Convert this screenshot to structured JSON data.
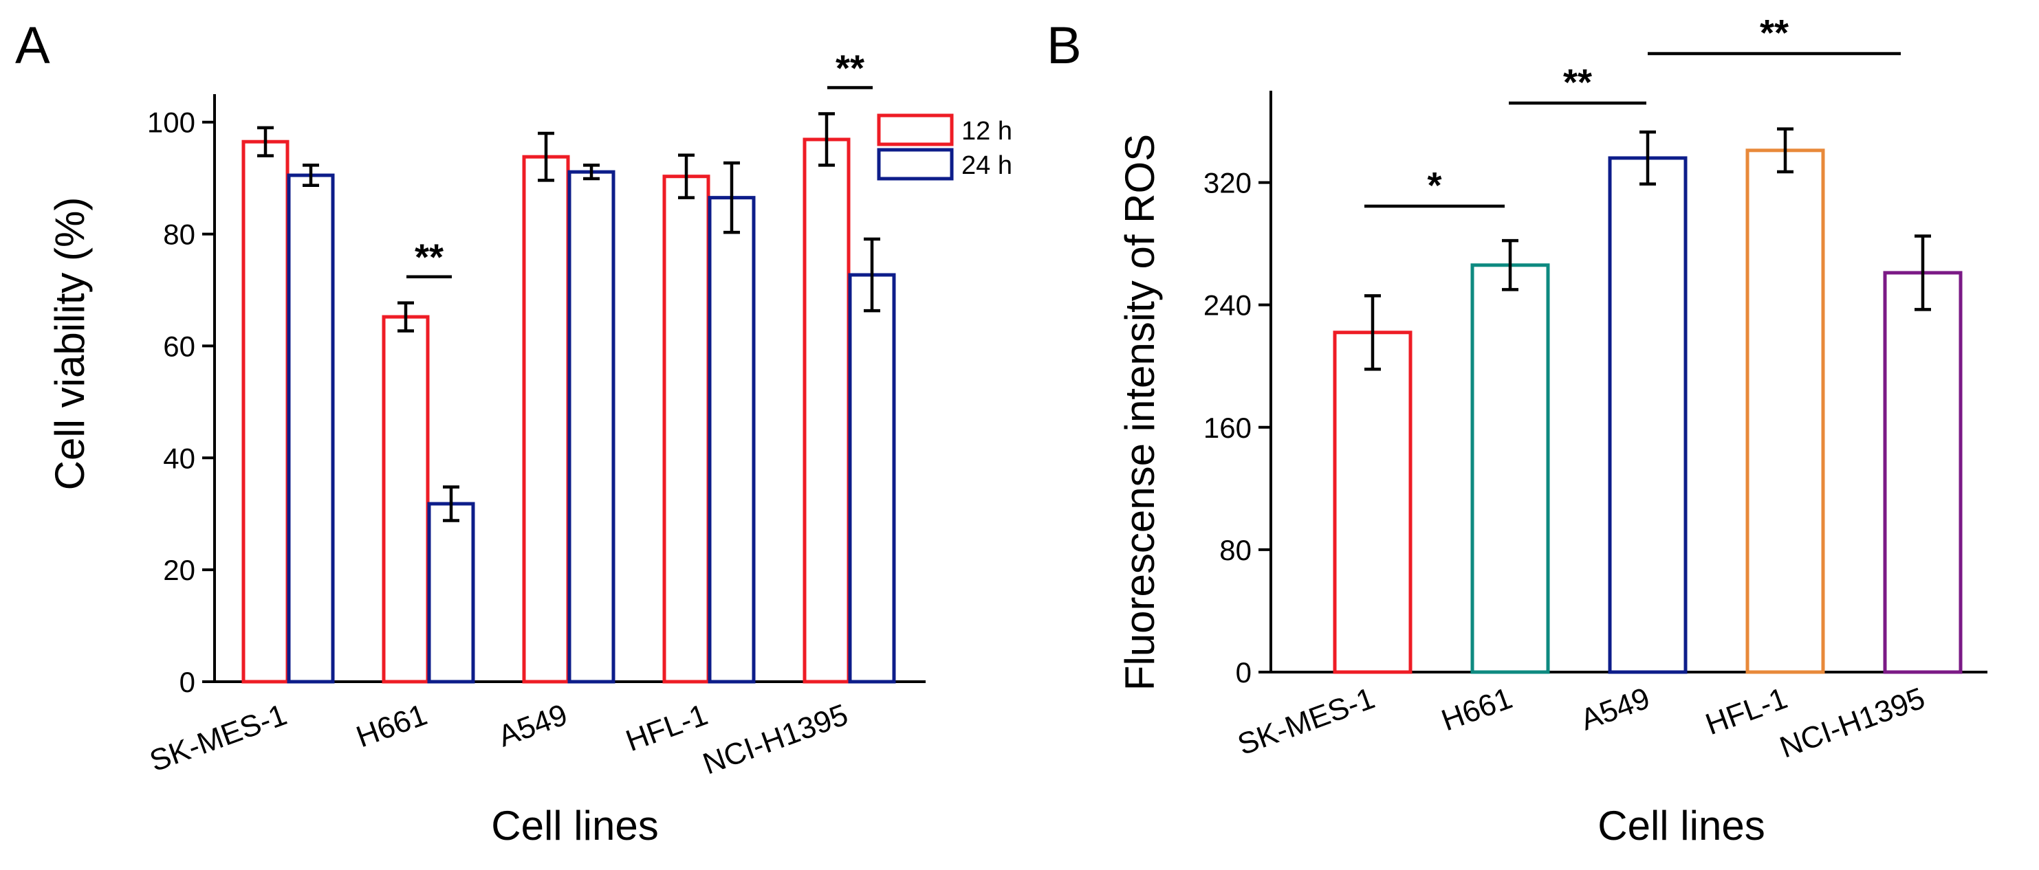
{
  "chart_data": [
    {
      "panel": "A",
      "type": "bar",
      "xlabel": "Cell lines",
      "ylabel": "Cell viability (%)",
      "ylim": [
        0,
        105
      ],
      "yticks": [
        0,
        20,
        40,
        60,
        80,
        100
      ],
      "categories": [
        "SK-MES-1",
        "H661",
        "A549",
        "HFL-1",
        "NCI-H1395"
      ],
      "series": [
        {
          "name": "12 h",
          "color": "#ee1c25",
          "values": [
            96.5,
            65.2,
            93.8,
            90.3,
            96.9
          ],
          "errors": [
            2.5,
            2.5,
            4.2,
            3.8,
            4.6
          ]
        },
        {
          "name": "24 h",
          "color": "#0d1d8a",
          "values": [
            90.5,
            31.8,
            91.1,
            86.5,
            72.7
          ],
          "errors": [
            1.8,
            3.0,
            1.2,
            6.2,
            6.4
          ]
        }
      ],
      "legend": "top-right",
      "significance": [
        {
          "category": "H661",
          "label": "**"
        },
        {
          "category": "NCI-H1395",
          "label": "**"
        }
      ]
    },
    {
      "panel": "B",
      "type": "bar",
      "xlabel": "Cell lines",
      "ylabel": "Fluorescense intensity of ROS",
      "ylim": [
        0,
        380
      ],
      "yticks": [
        0,
        80,
        160,
        240,
        320
      ],
      "categories": [
        "SK-MES-1",
        "H661",
        "A549",
        "HFL-1",
        "NCI-H1395"
      ],
      "series": [
        {
          "name": "ROS",
          "colors": [
            "#ee1c25",
            "#0e8a80",
            "#0d1d8a",
            "#e8893a",
            "#7b1a86"
          ],
          "values": [
            222,
            266,
            336,
            341,
            261
          ],
          "errors": [
            24,
            16,
            17,
            14,
            24
          ]
        }
      ],
      "significance": [
        {
          "from": "SK-MES-1",
          "to": "H661",
          "label": "*"
        },
        {
          "from": "H661",
          "to": "A549",
          "label": "**"
        },
        {
          "from": "A549",
          "to": "NCI-H1395",
          "label": "**"
        }
      ]
    }
  ]
}
